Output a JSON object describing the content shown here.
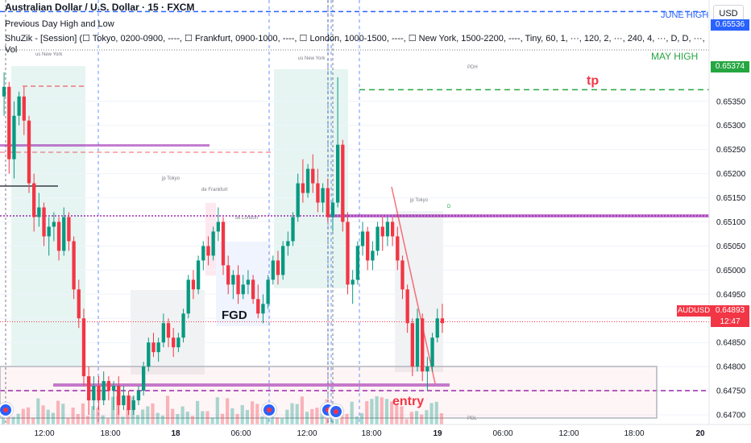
{
  "header": {
    "title": "Australian Dollar / U.S. Dollar · 15 · FXCM",
    "indicator1": "Previous Day High and Low",
    "indicator2": "ShuZik - [Session] (☐ Tokyo, 0200-0900, ----, ☐ Frankfurt, 0900-1000, ----, ☐ London, 1000-1500, ----, ☐ New York, 1500-2200, ----, Tiny, 60, 1, ···, 120, 2, ···, 240, 4, ···, D, D, ···,",
    "indicator3": "Vol"
  },
  "currency_button": "USD",
  "levels": {
    "june_high_label": "JUNE HIGH",
    "may_high_label": "MAY HIGH",
    "june_high_colour": "#2962ff",
    "may_high_colour": "#26a641"
  },
  "annotations": {
    "tp": "tp",
    "entry": "entry",
    "fgd": "FGD",
    "annotation_colour": "#f23645"
  },
  "session_labels": {
    "new_york_1": "us New York",
    "new_york_2": "us New York",
    "tokyo_1": "jp Tokyo",
    "tokyo_2": "jp Tokyo",
    "frankfurt": "de Frankfurt",
    "london": "uk London",
    "pdh": "PDH",
    "pdl": "PDL",
    "d": "D"
  },
  "price_tags": {
    "may_high_value": "0.65374",
    "june_high_value": "0.65536",
    "symbol": "AUDUSD",
    "last_price": "0.64893",
    "countdown": "12:47"
  },
  "colors": {
    "up_candle": "#089981",
    "down_candle": "#f23645",
    "background": "#ffffff",
    "purple_level": "#9c27b0"
  },
  "chart_data": {
    "type": "candlestick",
    "y_axis_ticks": [
      "0.65350",
      "0.65300",
      "0.65250",
      "0.65200",
      "0.65150",
      "0.65100",
      "0.65050",
      "0.65000",
      "0.64950",
      "0.64900",
      "0.64850",
      "0.64800",
      "0.64750",
      "0.64700"
    ],
    "x_axis_ticks": [
      "12:00",
      "18:00",
      "18",
      "06:00",
      "12:00",
      "18:00",
      "19",
      "06:00",
      "12:00",
      "18:00",
      "20"
    ],
    "ylim": [
      0.6468,
      0.6556
    ],
    "ohlc": [
      [
        0.6536,
        0.6541,
        0.6532,
        0.6538
      ],
      [
        0.6538,
        0.6539,
        0.652,
        0.6523
      ],
      [
        0.6523,
        0.6535,
        0.6519,
        0.6532
      ],
      [
        0.6532,
        0.6537,
        0.653,
        0.6536
      ],
      [
        0.6536,
        0.6538,
        0.6528,
        0.6531
      ],
      [
        0.6531,
        0.6532,
        0.6516,
        0.6518
      ],
      [
        0.6518,
        0.652,
        0.6508,
        0.6511
      ],
      [
        0.6511,
        0.6516,
        0.6509,
        0.6513
      ],
      [
        0.6513,
        0.6514,
        0.6505,
        0.6507
      ],
      [
        0.6507,
        0.6511,
        0.6503,
        0.6509
      ],
      [
        0.6509,
        0.6512,
        0.6506,
        0.651
      ],
      [
        0.651,
        0.6511,
        0.6502,
        0.6504
      ],
      [
        0.6504,
        0.6513,
        0.6503,
        0.6511
      ],
      [
        0.6511,
        0.6512,
        0.6504,
        0.6506
      ],
      [
        0.6506,
        0.6507,
        0.6494,
        0.6496
      ],
      [
        0.6496,
        0.6498,
        0.6488,
        0.649
      ],
      [
        0.649,
        0.6492,
        0.6476,
        0.6478
      ],
      [
        0.6478,
        0.648,
        0.647,
        0.6473
      ],
      [
        0.6473,
        0.6478,
        0.6471,
        0.6476
      ],
      [
        0.6476,
        0.6478,
        0.6471,
        0.6473
      ],
      [
        0.6473,
        0.6479,
        0.6472,
        0.6477
      ],
      [
        0.6477,
        0.6478,
        0.6473,
        0.6475
      ],
      [
        0.6475,
        0.6477,
        0.6471,
        0.6476
      ],
      [
        0.6476,
        0.6478,
        0.647,
        0.6472
      ],
      [
        0.6472,
        0.6476,
        0.6471,
        0.6474
      ],
      [
        0.6474,
        0.6475,
        0.647,
        0.6471
      ],
      [
        0.6471,
        0.6474,
        0.647,
        0.6473
      ],
      [
        0.6473,
        0.6476,
        0.6472,
        0.6475
      ],
      [
        0.6475,
        0.6481,
        0.6474,
        0.648
      ],
      [
        0.648,
        0.6486,
        0.6479,
        0.6485
      ],
      [
        0.6485,
        0.6487,
        0.6482,
        0.6483
      ],
      [
        0.6483,
        0.6486,
        0.6481,
        0.6485
      ],
      [
        0.6485,
        0.6491,
        0.6484,
        0.6489
      ],
      [
        0.6489,
        0.649,
        0.6484,
        0.6486
      ],
      [
        0.6486,
        0.6488,
        0.6482,
        0.6484
      ],
      [
        0.6484,
        0.6487,
        0.6483,
        0.6486
      ],
      [
        0.6486,
        0.6492,
        0.6485,
        0.6491
      ],
      [
        0.6491,
        0.6499,
        0.649,
        0.6498
      ],
      [
        0.6498,
        0.65,
        0.6494,
        0.6496
      ],
      [
        0.6496,
        0.6503,
        0.6495,
        0.6502
      ],
      [
        0.6502,
        0.6506,
        0.65,
        0.6505
      ],
      [
        0.6505,
        0.6507,
        0.6501,
        0.6503
      ],
      [
        0.6503,
        0.6509,
        0.6502,
        0.6508
      ],
      [
        0.6508,
        0.6513,
        0.6506,
        0.651
      ],
      [
        0.651,
        0.6511,
        0.6499,
        0.6501
      ],
      [
        0.6501,
        0.6503,
        0.6495,
        0.6497
      ],
      [
        0.6497,
        0.65,
        0.6494,
        0.6499
      ],
      [
        0.6499,
        0.6501,
        0.6493,
        0.6495
      ],
      [
        0.6495,
        0.6499,
        0.6494,
        0.6497
      ],
      [
        0.6497,
        0.65,
        0.6495,
        0.6498
      ],
      [
        0.6498,
        0.6499,
        0.6493,
        0.6494
      ],
      [
        0.6494,
        0.6497,
        0.649,
        0.6491
      ],
      [
        0.6491,
        0.6495,
        0.6489,
        0.6493
      ],
      [
        0.6493,
        0.6499,
        0.6492,
        0.6498
      ],
      [
        0.6498,
        0.6503,
        0.6497,
        0.6502
      ],
      [
        0.6502,
        0.6504,
        0.6497,
        0.6499
      ],
      [
        0.6499,
        0.6506,
        0.6498,
        0.6505
      ],
      [
        0.6505,
        0.6508,
        0.6503,
        0.6506
      ],
      [
        0.6506,
        0.6512,
        0.6505,
        0.6511
      ],
      [
        0.6511,
        0.652,
        0.651,
        0.6518
      ],
      [
        0.6518,
        0.6523,
        0.6514,
        0.6516
      ],
      [
        0.6516,
        0.6522,
        0.6515,
        0.6521
      ],
      [
        0.6521,
        0.6524,
        0.6516,
        0.6518
      ],
      [
        0.6518,
        0.6521,
        0.6512,
        0.6514
      ],
      [
        0.6514,
        0.6518,
        0.6512,
        0.6517
      ],
      [
        0.6517,
        0.6519,
        0.651,
        0.6511
      ],
      [
        0.6511,
        0.6515,
        0.6508,
        0.6514
      ],
      [
        0.6514,
        0.654,
        0.6513,
        0.6526
      ],
      [
        0.6526,
        0.6527,
        0.6508,
        0.651
      ],
      [
        0.651,
        0.6512,
        0.6495,
        0.6497
      ],
      [
        0.6497,
        0.65,
        0.6493,
        0.6498
      ],
      [
        0.6498,
        0.6506,
        0.6497,
        0.6505
      ],
      [
        0.6505,
        0.651,
        0.6503,
        0.6508
      ],
      [
        0.6508,
        0.6509,
        0.65,
        0.6502
      ],
      [
        0.6502,
        0.6506,
        0.65,
        0.6504
      ],
      [
        0.6504,
        0.651,
        0.6503,
        0.6509
      ],
      [
        0.6509,
        0.6511,
        0.6504,
        0.6507
      ],
      [
        0.6507,
        0.6511,
        0.6505,
        0.651
      ],
      [
        0.651,
        0.6511,
        0.6505,
        0.6507
      ],
      [
        0.6507,
        0.6509,
        0.65,
        0.6502
      ],
      [
        0.6502,
        0.6503,
        0.6494,
        0.6496
      ],
      [
        0.6496,
        0.6497,
        0.6487,
        0.6489
      ],
      [
        0.6489,
        0.649,
        0.6478,
        0.648
      ],
      [
        0.648,
        0.6492,
        0.6479,
        0.649
      ],
      [
        0.649,
        0.6491,
        0.6477,
        0.6479
      ],
      [
        0.6479,
        0.6482,
        0.6475,
        0.648
      ],
      [
        0.648,
        0.6487,
        0.6479,
        0.6486
      ],
      [
        0.6486,
        0.6492,
        0.6485,
        0.649
      ],
      [
        0.649,
        0.6493,
        0.6487,
        0.6489
      ]
    ],
    "current_price": 0.64893,
    "may_high": 0.65374,
    "june_high": 0.65536
  }
}
